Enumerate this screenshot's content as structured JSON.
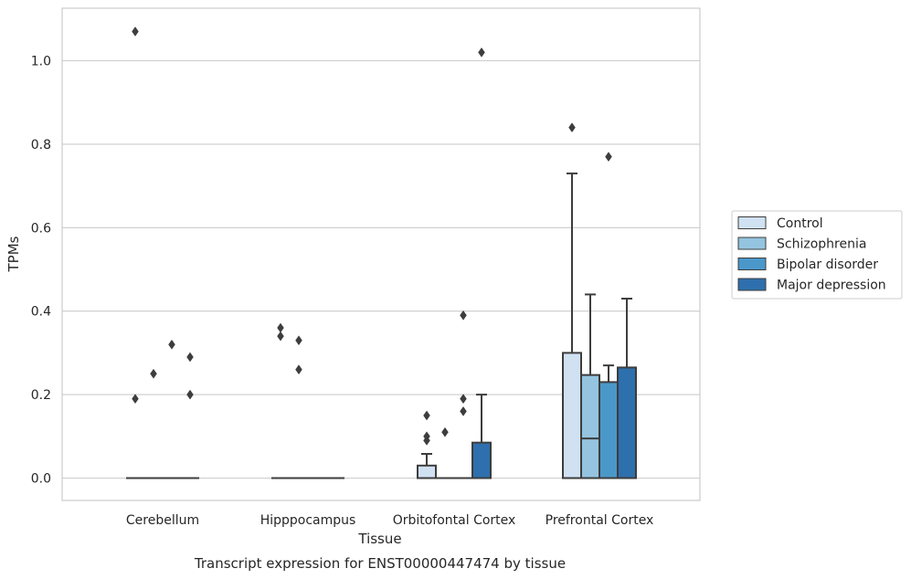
{
  "chart_data": {
    "type": "box",
    "xlabel": "Tissue",
    "ylabel": "TPMs",
    "caption": "Transcript expression for ENST00000447474 by tissue",
    "ylim": [
      -0.05,
      1.13
    ],
    "yticks": [
      "0.0",
      "0.2",
      "0.4",
      "0.6",
      "0.8",
      "1.0"
    ],
    "grid": "horizontal",
    "legend_position": "right",
    "categories": [
      "Cerebellum",
      "Hipppocampus",
      "Orbitofontal Cortex",
      "Prefrontal Cortex"
    ],
    "series": [
      {
        "name": "Control",
        "color": "#d0e1f2"
      },
      {
        "name": "Schizophrenia",
        "color": "#94c4df"
      },
      {
        "name": "Bipolar disorder",
        "color": "#4a98c9"
      },
      {
        "name": "Major depression",
        "color": "#2e6fad"
      }
    ],
    "boxes": [
      {
        "category": "Cerebellum",
        "series": "Control",
        "min": 0,
        "q1": 0,
        "median": 0,
        "q3": 0,
        "max": 0,
        "outliers": [
          1.07,
          0.19
        ]
      },
      {
        "category": "Cerebellum",
        "series": "Schizophrenia",
        "min": 0,
        "q1": 0,
        "median": 0,
        "q3": 0,
        "max": 0,
        "outliers": [
          0.25
        ]
      },
      {
        "category": "Cerebellum",
        "series": "Bipolar disorder",
        "min": 0,
        "q1": 0,
        "median": 0,
        "q3": 0,
        "max": 0,
        "outliers": [
          0.32
        ]
      },
      {
        "category": "Cerebellum",
        "series": "Major depression",
        "min": 0,
        "q1": 0,
        "median": 0,
        "q3": 0,
        "max": 0,
        "outliers": [
          0.29,
          0.2
        ]
      },
      {
        "category": "Hipppocampus",
        "series": "Control",
        "min": 0,
        "q1": 0,
        "median": 0,
        "q3": 0,
        "max": 0,
        "outliers": [
          0.36,
          0.34
        ]
      },
      {
        "category": "Hipppocampus",
        "series": "Schizophrenia",
        "min": 0,
        "q1": 0,
        "median": 0,
        "q3": 0,
        "max": 0,
        "outliers": [
          0.33,
          0.26
        ]
      },
      {
        "category": "Hipppocampus",
        "series": "Bipolar disorder",
        "min": 0,
        "q1": 0,
        "median": 0,
        "q3": 0,
        "max": 0,
        "outliers": []
      },
      {
        "category": "Hipppocampus",
        "series": "Major depression",
        "min": 0,
        "q1": 0,
        "median": 0,
        "q3": 0,
        "max": 0,
        "outliers": []
      },
      {
        "category": "Orbitofontal Cortex",
        "series": "Control",
        "min": 0,
        "q1": 0,
        "median": 0,
        "q3": 0.03,
        "max": 0.058,
        "outliers": [
          0.15,
          0.1,
          0.09
        ]
      },
      {
        "category": "Orbitofontal Cortex",
        "series": "Schizophrenia",
        "min": 0,
        "q1": 0,
        "median": 0,
        "q3": 0,
        "max": 0,
        "outliers": [
          0.11
        ]
      },
      {
        "category": "Orbitofontal Cortex",
        "series": "Bipolar disorder",
        "min": 0,
        "q1": 0,
        "median": 0,
        "q3": 0,
        "max": 0,
        "outliers": [
          0.39,
          0.19,
          0.16
        ]
      },
      {
        "category": "Orbitofontal Cortex",
        "series": "Major depression",
        "min": 0,
        "q1": 0,
        "median": 0,
        "q3": 0.085,
        "max": 0.2,
        "outliers": [
          1.02
        ]
      },
      {
        "category": "Prefrontal Cortex",
        "series": "Control",
        "min": 0,
        "q1": 0,
        "median": 0,
        "q3": 0.3,
        "max": 0.73,
        "outliers": [
          0.84
        ]
      },
      {
        "category": "Prefrontal Cortex",
        "series": "Schizophrenia",
        "min": 0,
        "q1": 0,
        "median": 0.095,
        "q3": 0.247,
        "max": 0.44,
        "outliers": []
      },
      {
        "category": "Prefrontal Cortex",
        "series": "Bipolar disorder",
        "min": 0,
        "q1": 0,
        "median": 0,
        "q3": 0.23,
        "max": 0.27,
        "outliers": [
          0.77
        ]
      },
      {
        "category": "Prefrontal Cortex",
        "series": "Major depression",
        "min": 0,
        "q1": 0,
        "median": 0,
        "q3": 0.265,
        "max": 0.43,
        "outliers": []
      }
    ]
  }
}
